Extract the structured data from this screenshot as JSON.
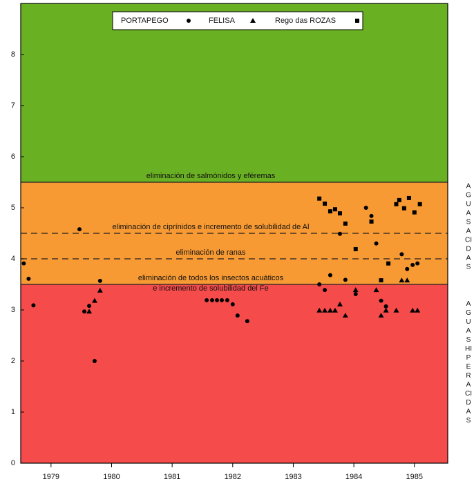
{
  "chart_data": {
    "type": "scatter",
    "xlim": [
      1979,
      1986.05
    ],
    "ylim": [
      0,
      9
    ],
    "xticks": [
      {
        "value": 1979.5,
        "label": "1979"
      },
      {
        "value": 1980.5,
        "label": "1980"
      },
      {
        "value": 1981.5,
        "label": "1981"
      },
      {
        "value": 1982.5,
        "label": "1982"
      },
      {
        "value": 1983.5,
        "label": "1983"
      },
      {
        "value": 1984.5,
        "label": "1984"
      },
      {
        "value": 1985.5,
        "label": "1985"
      }
    ],
    "yticks": [
      0,
      1,
      2,
      3,
      4,
      5,
      6,
      7,
      8
    ],
    "bands": [
      {
        "from": 5.5,
        "to": 9,
        "color": "#6ab023"
      },
      {
        "from": 3.5,
        "to": 5.5,
        "color": "#f79a33"
      },
      {
        "from": 0,
        "to": 3.5,
        "color": "#f54b4b"
      }
    ],
    "lines": [
      {
        "y": 5.5,
        "style": "solid",
        "labels": [
          "eliminación de salmónidos y eféremas"
        ]
      },
      {
        "y": 4.5,
        "style": "dashed",
        "labels": [
          "eliminación de ciprínidos e incremento de solubilidad de Al"
        ]
      },
      {
        "y": 4.0,
        "style": "dashed",
        "labels": [
          "eliminación de ranas"
        ]
      },
      {
        "y": 3.5,
        "style": "solid",
        "labels": [
          "eliminación de todos los insectos acuáticos",
          "e incremento de solubilidad del Fe"
        ]
      }
    ],
    "side_labels": [
      {
        "from": 5.5,
        "letters": [
          "A",
          "G",
          "U",
          "A",
          "S",
          "A",
          "CI",
          "D",
          "A",
          "S"
        ]
      },
      {
        "from": 3.2,
        "letters": [
          "A",
          "G",
          "U",
          "A",
          "S",
          "HI",
          "P",
          "E",
          "R",
          "A",
          "CI",
          "D",
          "A",
          "S"
        ]
      }
    ],
    "series": [
      {
        "name": "PORTAPEGO",
        "marker": "circle",
        "color": "#000000",
        "x": [
          1979.05,
          1979.13,
          1979.21,
          1979.97,
          1980.05,
          1980.13,
          1980.22,
          1980.31,
          1982.07,
          1982.16,
          1982.24,
          1982.32,
          1982.41,
          1982.5,
          1982.58,
          1982.74,
          1983.93,
          1984.02,
          1984.11,
          1984.27,
          1984.36,
          1984.53,
          1984.7,
          1984.79,
          1984.87,
          1984.95,
          1985.03,
          1985.29,
          1985.38,
          1985.47,
          1985.55
        ],
        "values": [
          3.91,
          3.61,
          3.09,
          4.58,
          2.97,
          3.08,
          2.0,
          3.57,
          3.19,
          3.19,
          3.19,
          3.19,
          3.19,
          3.11,
          2.89,
          2.78,
          3.5,
          3.39,
          3.68,
          4.49,
          3.59,
          3.31,
          5.0,
          4.84,
          4.3,
          3.18,
          3.07,
          4.09,
          3.8,
          3.88,
          3.91
        ]
      },
      {
        "name": "FELISA",
        "marker": "triangle",
        "color": "#000000",
        "x": [
          1980.13,
          1980.22,
          1980.31,
          1983.93,
          1984.02,
          1984.11,
          1984.19,
          1984.27,
          1984.36,
          1984.53,
          1984.87,
          1984.95,
          1985.03,
          1985.2,
          1985.29,
          1985.38,
          1985.47,
          1985.55
        ],
        "values": [
          2.97,
          3.18,
          3.38,
          2.99,
          2.99,
          2.99,
          2.99,
          3.11,
          2.89,
          3.39,
          3.39,
          2.89,
          2.99,
          2.99,
          3.58,
          3.58,
          2.99,
          2.99
        ]
      },
      {
        "name": "Rego das ROZAS",
        "marker": "square",
        "color": "#000000",
        "x": [
          1983.93,
          1984.02,
          1984.11,
          1984.19,
          1984.27,
          1984.36,
          1984.53,
          1984.79,
          1984.95,
          1985.07,
          1985.2,
          1985.25,
          1985.33,
          1985.41,
          1985.5,
          1985.59
        ],
        "values": [
          5.18,
          5.08,
          4.93,
          4.97,
          4.89,
          4.69,
          4.19,
          4.73,
          3.58,
          3.91,
          5.07,
          5.15,
          4.99,
          5.19,
          4.91,
          5.07
        ]
      }
    ]
  }
}
